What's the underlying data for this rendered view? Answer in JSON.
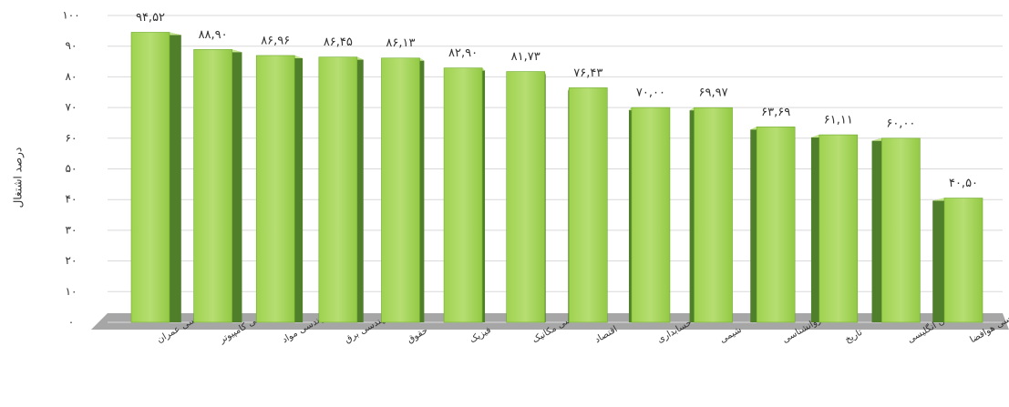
{
  "chart_data": {
    "type": "bar",
    "y_label": "درصد اشتغال",
    "categories": [
      "مهندسی عمران",
      "مهندسی کامپیوتر",
      "مهندسی مواد",
      "مهندسی برق",
      "حقوق",
      "فیزیک",
      "مهندسی مکانیک",
      "اقتصاد",
      "حسابداری",
      "شیمی",
      "روانشناسی",
      "تاریخ",
      "آموزش زبان انگلیسی",
      "مهندسی هوافضا"
    ],
    "values": [
      94.52,
      88.9,
      86.96,
      86.45,
      86.13,
      82.9,
      81.73,
      76.43,
      70.0,
      69.97,
      63.69,
      61.11,
      60.0,
      40.5
    ],
    "value_labels": [
      "۹۴,۵۲",
      "۸۸,۹۰",
      "۸۶,۹۶",
      "۸۶,۴۵",
      "۸۶,۱۳",
      "۸۲,۹۰",
      "۸۱,۷۳",
      "۷۶,۴۳",
      "۷۰,۰۰",
      "۶۹,۹۷",
      "۶۳,۶۹",
      "۶۱,۱۱",
      "۶۰,۰۰",
      "۴۰,۵۰"
    ],
    "color": "#8cc63f",
    "ylim": [
      0,
      100
    ],
    "yticks": [
      {
        "value": 0,
        "label": "۰"
      },
      {
        "value": 10,
        "label": "۱۰"
      },
      {
        "value": 20,
        "label": "۲۰"
      },
      {
        "value": 30,
        "label": "۳۰"
      },
      {
        "value": 40,
        "label": "۴۰"
      },
      {
        "value": 50,
        "label": "۵۰"
      },
      {
        "value": 60,
        "label": "۶۰"
      },
      {
        "value": 70,
        "label": "۷۰"
      },
      {
        "value": 80,
        "label": "۸۰"
      },
      {
        "value": 90,
        "label": "۹۰"
      },
      {
        "value": 100,
        "label": "۱۰۰"
      }
    ],
    "grid": true
  }
}
